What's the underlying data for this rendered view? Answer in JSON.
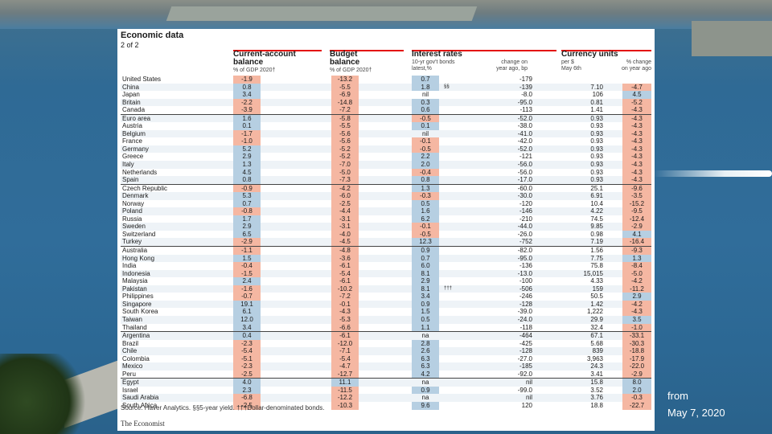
{
  "panel": {
    "title": "Economic data",
    "subtitle": "2 of 2",
    "groups": {
      "current_account": {
        "title_line1": "Current-account",
        "title_line2": "balance",
        "sub": "% of GDP 2020†"
      },
      "budget": {
        "title_line1": "Budget",
        "title_line2": "balance",
        "sub": "% of GDP 2020†"
      },
      "interest": {
        "title_line1": "Interest rates",
        "sub_left1": "10-yr gov't bonds",
        "sub_left2": "latest,%",
        "sub_right1": "change on",
        "sub_right2": "year ago, bp"
      },
      "currency": {
        "title_line1": "Currency units",
        "sub_left1": "per $",
        "sub_left2": "May 6th",
        "sub_right1": "% change",
        "sub_right2": "on year ago"
      }
    },
    "rows": [
      {
        "country": "United States",
        "ca": "-1.9",
        "bb": "-13.2",
        "ir": "0.7",
        "fn": "",
        "ch": "-179",
        "pd": "",
        "pc": ""
      },
      {
        "country": "China",
        "ca": "0.8",
        "bb": "-5.5",
        "ir": "1.8",
        "fn": "§§",
        "ch": "-139",
        "pd": "7.10",
        "pc": "-4.7"
      },
      {
        "country": "Japan",
        "ca": "3.4",
        "bb": "-6.9",
        "ir": "nil",
        "fn": "",
        "ch": "-8.0",
        "pd": "106",
        "pc": "4.5"
      },
      {
        "country": "Britain",
        "ca": "-2.2",
        "bb": "-14.8",
        "ir": "0.3",
        "fn": "",
        "ch": "-95.0",
        "pd": "0.81",
        "pc": "-5.2"
      },
      {
        "country": "Canada",
        "ca": "-3.9",
        "bb": "-7.2",
        "ir": "0.6",
        "fn": "",
        "ch": "-113",
        "pd": "1.41",
        "pc": "-4.3"
      },
      {
        "country": "Euro area",
        "ca": "1.6",
        "bb": "-5.8",
        "ir": "-0.5",
        "fn": "",
        "ch": "-52.0",
        "pd": "0.93",
        "pc": "-4.3"
      },
      {
        "country": "Austria",
        "ca": "0.1",
        "bb": "-5.5",
        "ir": "0.1",
        "fn": "",
        "ch": "-38.0",
        "pd": "0.93",
        "pc": "-4.3"
      },
      {
        "country": "Belgium",
        "ca": "-1.7",
        "bb": "-5.6",
        "ir": "nil",
        "fn": "",
        "ch": "-41.0",
        "pd": "0.93",
        "pc": "-4.3"
      },
      {
        "country": "France",
        "ca": "-1.0",
        "bb": "-5.6",
        "ir": "-0.1",
        "fn": "",
        "ch": "-42.0",
        "pd": "0.93",
        "pc": "-4.3"
      },
      {
        "country": "Germany",
        "ca": "5.2",
        "bb": "-5.2",
        "ir": "-0.5",
        "fn": "",
        "ch": "-52.0",
        "pd": "0.93",
        "pc": "-4.3"
      },
      {
        "country": "Greece",
        "ca": "2.9",
        "bb": "-5.2",
        "ir": "2.2",
        "fn": "",
        "ch": "-121",
        "pd": "0.93",
        "pc": "-4.3"
      },
      {
        "country": "Italy",
        "ca": "1.3",
        "bb": "-7.0",
        "ir": "2.0",
        "fn": "",
        "ch": "-56.0",
        "pd": "0.93",
        "pc": "-4.3"
      },
      {
        "country": "Netherlands",
        "ca": "4.5",
        "bb": "-5.0",
        "ir": "-0.4",
        "fn": "",
        "ch": "-56.0",
        "pd": "0.93",
        "pc": "-4.3"
      },
      {
        "country": "Spain",
        "ca": "0.8",
        "bb": "-7.3",
        "ir": "0.8",
        "fn": "",
        "ch": "-17.0",
        "pd": "0.93",
        "pc": "-4.3"
      },
      {
        "country": "Czech Republic",
        "ca": "-0.9",
        "bb": "-4.2",
        "ir": "1.3",
        "fn": "",
        "ch": "-60.0",
        "pd": "25.1",
        "pc": "-9.6"
      },
      {
        "country": "Denmark",
        "ca": "5.3",
        "bb": "-6.0",
        "ir": "-0.3",
        "fn": "",
        "ch": "-30.0",
        "pd": "6.91",
        "pc": "-3.5"
      },
      {
        "country": "Norway",
        "ca": "0.7",
        "bb": "-2.5",
        "ir": "0.5",
        "fn": "",
        "ch": "-120",
        "pd": "10.4",
        "pc": "-15.2"
      },
      {
        "country": "Poland",
        "ca": "-0.8",
        "bb": "-4.4",
        "ir": "1.6",
        "fn": "",
        "ch": "-146",
        "pd": "4.22",
        "pc": "-9.5"
      },
      {
        "country": "Russia",
        "ca": "1.7",
        "bb": "-3.1",
        "ir": "6.2",
        "fn": "",
        "ch": "-210",
        "pd": "74.5",
        "pc": "-12.4"
      },
      {
        "country": "Sweden",
        "ca": "2.9",
        "bb": "-3.1",
        "ir": "-0.1",
        "fn": "",
        "ch": "-44.0",
        "pd": "9.85",
        "pc": "-2.9"
      },
      {
        "country": "Switzerland",
        "ca": "6.5",
        "bb": "-4.0",
        "ir": "-0.5",
        "fn": "",
        "ch": "-26.0",
        "pd": "0.98",
        "pc": "4.1"
      },
      {
        "country": "Turkey",
        "ca": "-2.9",
        "bb": "-4.5",
        "ir": "12.3",
        "fn": "",
        "ch": "-752",
        "pd": "7.19",
        "pc": "-16.4"
      },
      {
        "country": "Australia",
        "ca": "-1.1",
        "bb": "-4.8",
        "ir": "0.9",
        "fn": "",
        "ch": "-82.0",
        "pd": "1.56",
        "pc": "-9.3"
      },
      {
        "country": "Hong Kong",
        "ca": "1.5",
        "bb": "-3.6",
        "ir": "0.7",
        "fn": "",
        "ch": "-95.0",
        "pd": "7.75",
        "pc": "1.3"
      },
      {
        "country": "India",
        "ca": "-0.4",
        "bb": "-6.1",
        "ir": "6.0",
        "fn": "",
        "ch": "-136",
        "pd": "75.8",
        "pc": "-8.4"
      },
      {
        "country": "Indonesia",
        "ca": "-1.5",
        "bb": "-5.4",
        "ir": "8.1",
        "fn": "",
        "ch": "-13.0",
        "pd": "15,015",
        "pc": "-5.0"
      },
      {
        "country": "Malaysia",
        "ca": "2.4",
        "bb": "-6.1",
        "ir": "2.9",
        "fn": "",
        "ch": "-100",
        "pd": "4.33",
        "pc": "-4.2"
      },
      {
        "country": "Pakistan",
        "ca": "-1.6",
        "bb": "-10.2",
        "ir": "8.1",
        "fn": "†††",
        "ch": "-506",
        "pd": "159",
        "pc": "-11.2"
      },
      {
        "country": "Philippines",
        "ca": "-0.7",
        "bb": "-7.2",
        "ir": "3.4",
        "fn": "",
        "ch": "-246",
        "pd": "50.5",
        "pc": "2.9"
      },
      {
        "country": "Singapore",
        "ca": "19.1",
        "bb": "-0.1",
        "ir": "0.9",
        "fn": "",
        "ch": "-128",
        "pd": "1.42",
        "pc": "-4.2"
      },
      {
        "country": "South Korea",
        "ca": "6.1",
        "bb": "-4.3",
        "ir": "1.5",
        "fn": "",
        "ch": "-39.0",
        "pd": "1,222",
        "pc": "-4.3"
      },
      {
        "country": "Taiwan",
        "ca": "12.0",
        "bb": "-5.3",
        "ir": "0.5",
        "fn": "",
        "ch": "-24.0",
        "pd": "29.9",
        "pc": "3.5"
      },
      {
        "country": "Thailand",
        "ca": "3.4",
        "bb": "-6.6",
        "ir": "1.1",
        "fn": "",
        "ch": "-118",
        "pd": "32.4",
        "pc": "-1.0"
      },
      {
        "country": "Argentina",
        "ca": "0.4",
        "bb": "-6.1",
        "ir": "na",
        "fn": "",
        "ch": "-464",
        "pd": "67.1",
        "pc": "-33.1"
      },
      {
        "country": "Brazil",
        "ca": "-2.3",
        "bb": "-12.0",
        "ir": "2.8",
        "fn": "",
        "ch": "-425",
        "pd": "5.68",
        "pc": "-30.3"
      },
      {
        "country": "Chile",
        "ca": "-5.4",
        "bb": "-7.1",
        "ir": "2.6",
        "fn": "",
        "ch": "-128",
        "pd": "839",
        "pc": "-18.8"
      },
      {
        "country": "Colombia",
        "ca": "-5.1",
        "bb": "-5.4",
        "ir": "6.3",
        "fn": "",
        "ch": "-27.0",
        "pd": "3,963",
        "pc": "-17.9"
      },
      {
        "country": "Mexico",
        "ca": "-2.3",
        "bb": "-4.7",
        "ir": "6.3",
        "fn": "",
        "ch": "-185",
        "pd": "24.3",
        "pc": "-22.0"
      },
      {
        "country": "Peru",
        "ca": "-2.5",
        "bb": "-12.7",
        "ir": "4.2",
        "fn": "",
        "ch": "-92.0",
        "pd": "3.41",
        "pc": "-2.9"
      },
      {
        "country": "Egypt",
        "ca": "4.0",
        "bb": "11.1",
        "ir": "na",
        "fn": "",
        "ch": "nil",
        "pd": "15.8",
        "pc": "8.0"
      },
      {
        "country": "Israel",
        "ca": "2.3",
        "bb": "-11.5",
        "ir": "0.9",
        "fn": "",
        "ch": "-99.0",
        "pd": "3.52",
        "pc": "2.0"
      },
      {
        "country": "Saudi Arabia",
        "ca": "-6.8",
        "bb": "-12.2",
        "ir": "na",
        "fn": "",
        "ch": "nil",
        "pd": "3.76",
        "pc": "-0.3"
      },
      {
        "country": "South Africa",
        "ca": "-2.5",
        "bb": "-10.3",
        "ir": "9.6",
        "fn": "",
        "ch": "120",
        "pd": "18.8",
        "pc": "-22.7"
      }
    ],
    "footnote": "Source: Haver Analytics. §§5-year yield. †††Dollar-denominated bonds.",
    "brand": "The Economist"
  },
  "caption": {
    "line1": "from",
    "line2": "May 7, 2020"
  }
}
